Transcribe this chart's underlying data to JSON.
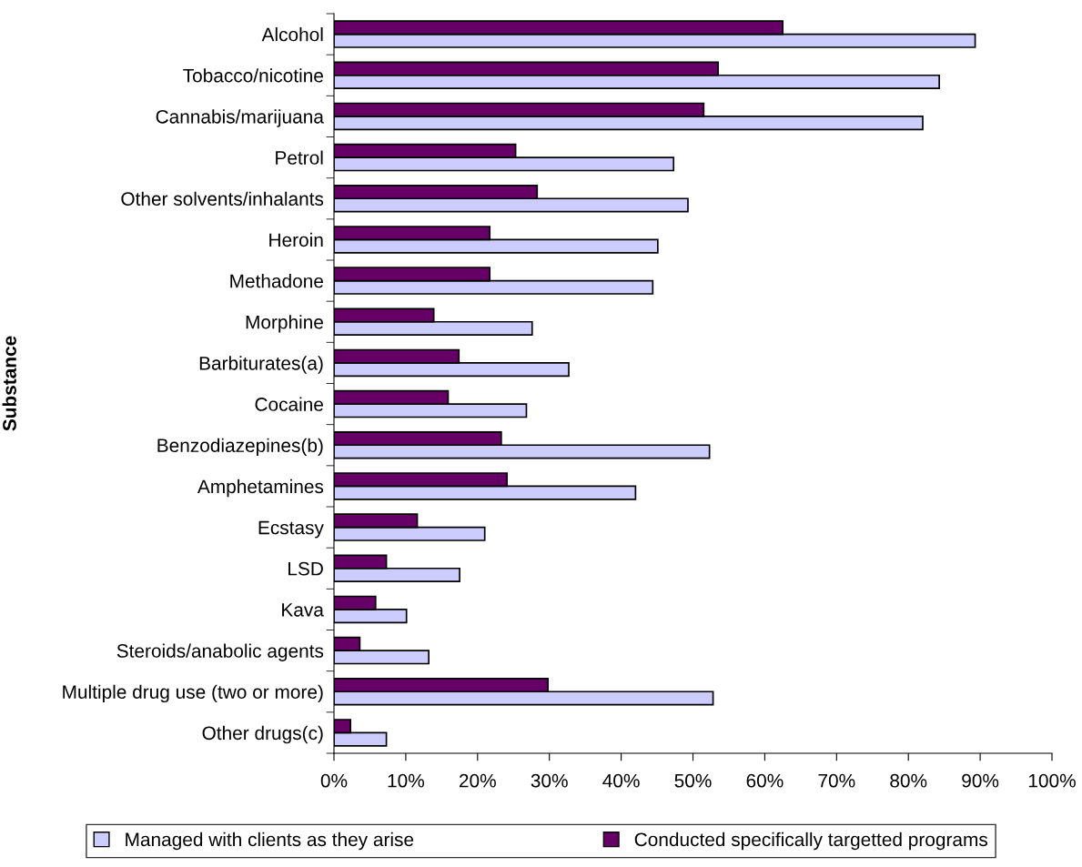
{
  "chart_data": {
    "type": "bar",
    "orientation": "horizontal",
    "ylabel": "Substance",
    "categories": [
      "Alcohol",
      "Tobacco/nicotine",
      "Cannabis/marijuana",
      "Petrol",
      "Other solvents/inhalants",
      "Heroin",
      "Methadone",
      "Morphine",
      "Barbiturates(a)",
      "Cocaine",
      "Benzodiazepines(b)",
      "Amphetamines",
      "Ecstasy",
      "LSD",
      "Kava",
      "Steroids/anabolic agents",
      "Multiple drug use (two or more)",
      "Other drugs(c)"
    ],
    "series": [
      {
        "name": "Managed with clients as they arise",
        "color": "#ccccff",
        "values": [
          89.3,
          84.3,
          82,
          47.3,
          49.3,
          45.1,
          44.4,
          27.6,
          32.7,
          26.8,
          52.3,
          42,
          21,
          17.5,
          10.1,
          13.2,
          52.8,
          7.3
        ]
      },
      {
        "name": "Conducted specifically targetted programs",
        "color": "#660066",
        "values": [
          62.5,
          53.5,
          51.5,
          25.3,
          28.3,
          21.7,
          21.7,
          13.9,
          17.4,
          15.9,
          23.3,
          24.1,
          11.6,
          7.3,
          5.8,
          3.6,
          29.8,
          2.3
        ]
      }
    ],
    "xlim": [
      0,
      100
    ],
    "xticks": [
      {
        "value": 0,
        "label": "0%"
      },
      {
        "value": 10,
        "label": "10%"
      },
      {
        "value": 20,
        "label": "20%"
      },
      {
        "value": 30,
        "label": "30%"
      },
      {
        "value": 40,
        "label": "40%"
      },
      {
        "value": 50,
        "label": "50%"
      },
      {
        "value": 60,
        "label": "60%"
      },
      {
        "value": 70,
        "label": "70%"
      },
      {
        "value": 80,
        "label": "80%"
      },
      {
        "value": 90,
        "label": "90%"
      },
      {
        "value": 100,
        "label": "100%"
      }
    ],
    "grid": false,
    "legend": "bottom"
  }
}
